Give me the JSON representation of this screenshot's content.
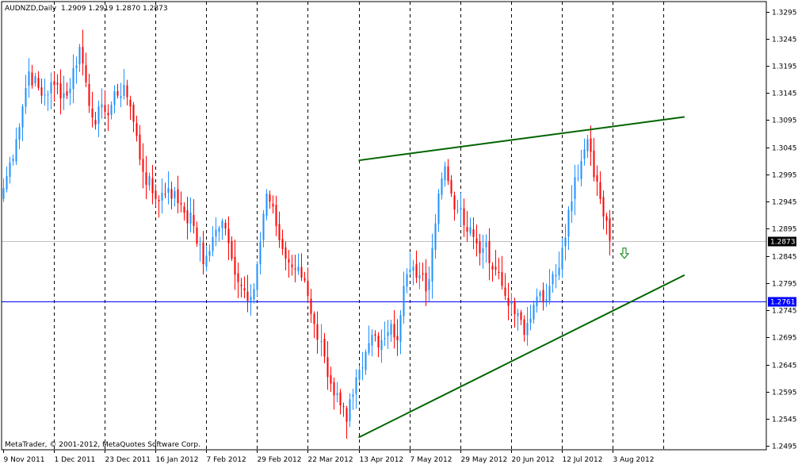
{
  "header": {
    "symbol": "AUDNZD,Daily",
    "ohlc": "1.2909 1.2919 1.2870 1.2873"
  },
  "watermark": "MetaTrader, © 2001-2012, MetaQuotes Software Corp.",
  "colors": {
    "background": "#ffffff",
    "frame": "#000000",
    "bull": "#1e90ff",
    "bear": "#ff0000",
    "trendline": "#006400",
    "support": "#0000ff",
    "bid_line": "#c0c0c0",
    "bid_tag_bg": "#000000",
    "support_tag_bg": "#0000ff",
    "arrow": "#008000"
  },
  "chart_data": {
    "type": "candlestick",
    "title": "AUDNZD,Daily",
    "y_ticks": [
      "1.3295",
      "1.3245",
      "1.3195",
      "1.3145",
      "1.3095",
      "1.3045",
      "1.2995",
      "1.2945",
      "1.2895",
      "1.2845",
      "1.2795",
      "1.2745",
      "1.2695",
      "1.2645",
      "1.2595",
      "1.2545",
      "1.2495"
    ],
    "y_tick_values": [
      1.3295,
      1.3245,
      1.3195,
      1.3145,
      1.3095,
      1.3045,
      1.2995,
      1.2945,
      1.2895,
      1.2845,
      1.2795,
      1.2745,
      1.2695,
      1.2645,
      1.2595,
      1.2545,
      1.2495
    ],
    "ylim": [
      1.2495,
      1.3295
    ],
    "x_ticks": [
      "9 Nov 2011",
      "1 Dec 2011",
      "23 Dec 2011",
      "16 Jan 2012",
      "7 Feb 2012",
      "29 Feb 2012",
      "22 Mar 2012",
      "13 Apr 2012",
      "7 May 2012",
      "29 May 2012",
      "20 Jun 2012",
      "12 Jul 2012",
      "3 Aug 2012"
    ],
    "grid": "vertical-dashed",
    "current_price": {
      "label": "1.2873",
      "value": 1.2873
    },
    "support_level": {
      "label": "1.2761",
      "value": 1.2761
    },
    "trendlines": [
      {
        "name": "",
        "from": {
          "date": "13 Apr 2012",
          "value": 1.2511
        },
        "to": {
          "date": "13 Aug 2012",
          "value": 1.281
        }
      },
      {
        "name": "",
        "from": {
          "date": "13 Apr 2012",
          "value": 1.3021
        },
        "to": {
          "date": "13 Aug 2012",
          "value": 1.3101
        }
      }
    ],
    "annotations": [
      {
        "type": "arrow-down",
        "date": "3 Aug 2012",
        "value": 1.2845
      }
    ],
    "anchors": [
      {
        "i": 0,
        "c": 1.297
      },
      {
        "i": 4,
        "c": 1.306
      },
      {
        "i": 8,
        "c": 1.3185
      },
      {
        "i": 12,
        "c": 1.314
      },
      {
        "i": 16,
        "c": 1.316
      },
      {
        "i": 20,
        "c": 1.314
      },
      {
        "i": 24,
        "c": 1.323
      },
      {
        "i": 28,
        "c": 1.31
      },
      {
        "i": 32,
        "c": 1.311
      },
      {
        "i": 36,
        "c": 1.314
      },
      {
        "i": 38,
        "c": 1.316
      },
      {
        "i": 40,
        "c": 1.312
      },
      {
        "i": 44,
        "c": 1.3
      },
      {
        "i": 48,
        "c": 1.295
      },
      {
        "i": 52,
        "c": 1.297
      },
      {
        "i": 56,
        "c": 1.294
      },
      {
        "i": 60,
        "c": 1.29
      },
      {
        "i": 63,
        "c": 1.283
      },
      {
        "i": 66,
        "c": 1.288
      },
      {
        "i": 69,
        "c": 1.291
      },
      {
        "i": 72,
        "c": 1.284
      },
      {
        "i": 75,
        "c": 1.279
      },
      {
        "i": 78,
        "c": 1.277
      },
      {
        "i": 80,
        "c": 1.283
      },
      {
        "i": 83,
        "c": 1.296
      },
      {
        "i": 86,
        "c": 1.29
      },
      {
        "i": 89,
        "c": 1.284
      },
      {
        "i": 92,
        "c": 1.282
      },
      {
        "i": 95,
        "c": 1.28
      },
      {
        "i": 98,
        "c": 1.272
      },
      {
        "i": 101,
        "c": 1.266
      },
      {
        "i": 103,
        "c": 1.261
      },
      {
        "i": 106,
        "c": 1.257
      },
      {
        "i": 108,
        "c": 1.254
      },
      {
        "i": 110,
        "c": 1.259
      },
      {
        "i": 113,
        "c": 1.264
      },
      {
        "i": 116,
        "c": 1.27
      },
      {
        "i": 119,
        "c": 1.269
      },
      {
        "i": 122,
        "c": 1.272
      },
      {
        "i": 124,
        "c": 1.269
      },
      {
        "i": 126,
        "c": 1.279
      },
      {
        "i": 128,
        "c": 1.282
      },
      {
        "i": 131,
        "c": 1.281
      },
      {
        "i": 133,
        "c": 1.278
      },
      {
        "i": 135,
        "c": 1.286
      },
      {
        "i": 137,
        "c": 1.296
      },
      {
        "i": 139,
        "c": 1.301
      },
      {
        "i": 141,
        "c": 1.296
      },
      {
        "i": 143,
        "c": 1.293
      },
      {
        "i": 146,
        "c": 1.289
      },
      {
        "i": 148,
        "c": 1.288
      },
      {
        "i": 150,
        "c": 1.285
      },
      {
        "i": 152,
        "c": 1.287
      },
      {
        "i": 154,
        "c": 1.282
      },
      {
        "i": 157,
        "c": 1.279
      },
      {
        "i": 160,
        "c": 1.276
      },
      {
        "i": 162,
        "c": 1.274
      },
      {
        "i": 164,
        "c": 1.27
      },
      {
        "i": 166,
        "c": 1.273
      },
      {
        "i": 168,
        "c": 1.277
      },
      {
        "i": 170,
        "c": 1.276
      },
      {
        "i": 172,
        "c": 1.279
      },
      {
        "i": 174,
        "c": 1.281
      },
      {
        "i": 176,
        "c": 1.286
      },
      {
        "i": 178,
        "c": 1.293
      },
      {
        "i": 180,
        "c": 1.299
      },
      {
        "i": 182,
        "c": 1.302
      },
      {
        "i": 184,
        "c": 1.306
      },
      {
        "i": 186,
        "c": 1.299
      },
      {
        "i": 188,
        "c": 1.295
      },
      {
        "i": 190,
        "c": 1.291
      },
      {
        "i": 191,
        "c": 1.2873
      }
    ]
  }
}
